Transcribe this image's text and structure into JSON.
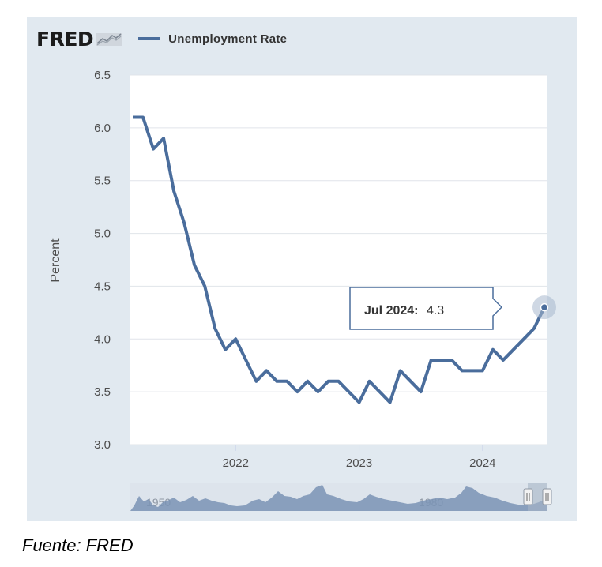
{
  "header": {
    "logo_text": "FRED",
    "series_label": "Unemployment Rate"
  },
  "tooltip": {
    "date": "Jul 2024:",
    "value": "4.3"
  },
  "navigator": {
    "year_labels": [
      "1950",
      "1980"
    ]
  },
  "source_caption": "Fuente: FRED",
  "colors": {
    "line": "#4a6d9c",
    "panel": "#e1e9f0",
    "plot_bg": "#ffffff",
    "grid": "#e0e4ea"
  },
  "chart_data": {
    "type": "line",
    "title": "",
    "xlabel": "",
    "ylabel": "Percent",
    "ylim": [
      3.0,
      6.5
    ],
    "yticks": [
      "3.0",
      "3.5",
      "4.0",
      "4.5",
      "5.0",
      "5.5",
      "6.0",
      "6.5"
    ],
    "xticks": [
      "2022",
      "2023",
      "2024"
    ],
    "grid": true,
    "series": [
      {
        "name": "Unemployment Rate",
        "x": [
          "2021-03",
          "2021-04",
          "2021-05",
          "2021-06",
          "2021-07",
          "2021-08",
          "2021-09",
          "2021-10",
          "2021-11",
          "2021-12",
          "2022-01",
          "2022-02",
          "2022-03",
          "2022-04",
          "2022-05",
          "2022-06",
          "2022-07",
          "2022-08",
          "2022-09",
          "2022-10",
          "2022-11",
          "2022-12",
          "2023-01",
          "2023-02",
          "2023-03",
          "2023-04",
          "2023-05",
          "2023-06",
          "2023-07",
          "2023-08",
          "2023-09",
          "2023-10",
          "2023-11",
          "2023-12",
          "2024-01",
          "2024-02",
          "2024-03",
          "2024-04",
          "2024-05",
          "2024-06",
          "2024-07"
        ],
        "values": [
          6.1,
          6.1,
          5.8,
          5.9,
          5.4,
          5.1,
          4.7,
          4.5,
          4.1,
          3.9,
          4.0,
          3.8,
          3.6,
          3.7,
          3.6,
          3.6,
          3.5,
          3.6,
          3.5,
          3.6,
          3.6,
          3.5,
          3.4,
          3.6,
          3.5,
          3.4,
          3.7,
          3.6,
          3.5,
          3.8,
          3.8,
          3.8,
          3.7,
          3.7,
          3.7,
          3.9,
          3.8,
          3.9,
          4.0,
          4.1,
          4.3
        ]
      }
    ],
    "highlight": {
      "x": "2024-07",
      "value": 4.3
    }
  }
}
